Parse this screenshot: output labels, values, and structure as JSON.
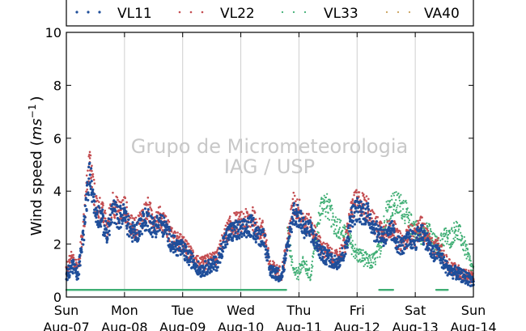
{
  "chart_data": {
    "type": "scatter",
    "title": "",
    "ylabel_prefix": "Wind speed (",
    "ylabel_unit_main": "ms",
    "ylabel_unit_exp": "−1",
    "ylabel_suffix": ")",
    "xlabel": "",
    "ylim": [
      0,
      10
    ],
    "xlim": [
      0,
      7
    ],
    "yticks": [
      0,
      2,
      4,
      6,
      8,
      10
    ],
    "xticks": [
      {
        "x": 0,
        "day": "Sun",
        "date": "Aug-07"
      },
      {
        "x": 1,
        "day": "Mon",
        "date": "Aug-08"
      },
      {
        "x": 2,
        "day": "Tue",
        "date": "Aug-09"
      },
      {
        "x": 3,
        "day": "Wed",
        "date": "Aug-10"
      },
      {
        "x": 4,
        "day": "Thu",
        "date": "Aug-11"
      },
      {
        "x": 5,
        "day": "Fri",
        "date": "Aug-12"
      },
      {
        "x": 6,
        "day": "Sat",
        "date": "Aug-13"
      },
      {
        "x": 7,
        "day": "Sun",
        "date": "Aug-14"
      }
    ],
    "grid": "vertical",
    "legend_position": "top",
    "watermark": [
      "Grupo de Micrometeorologia",
      "IAG / USP"
    ],
    "series": [
      {
        "name": "VL11",
        "color": "#1f4e9a",
        "size": 1.6,
        "x": [
          0,
          0.1,
          0.2,
          0.3,
          0.4,
          0.5,
          0.6,
          0.7,
          0.8,
          0.9,
          1,
          1.1,
          1.2,
          1.3,
          1.4,
          1.5,
          1.6,
          1.7,
          1.8,
          1.9,
          2,
          2.1,
          2.2,
          2.3,
          2.4,
          2.5,
          2.6,
          2.7,
          2.8,
          2.9,
          3,
          3.1,
          3.2,
          3.3,
          3.4,
          3.5,
          3.6,
          3.7,
          3.8,
          3.9,
          4,
          4.1,
          4.2,
          4.3,
          4.4,
          4.5,
          4.6,
          4.7,
          4.8,
          4.9,
          5,
          5.1,
          5.2,
          5.3,
          5.4,
          5.5,
          5.6,
          5.7,
          5.8,
          5.9,
          6,
          6.1,
          6.2,
          6.3,
          6.4,
          6.5,
          6.6,
          6.7,
          6.8,
          6.9,
          7
        ],
        "y": [
          0.8,
          1.2,
          0.8,
          2.5,
          4.8,
          3.2,
          3.0,
          2.3,
          3.3,
          3.0,
          3.1,
          2.5,
          2.4,
          2.8,
          3.0,
          2.6,
          2.8,
          2.6,
          2.1,
          1.9,
          1.8,
          1.5,
          1.3,
          1.0,
          1.1,
          1.2,
          1.3,
          2.0,
          2.4,
          2.5,
          2.5,
          2.6,
          2.7,
          2.3,
          2.3,
          1.0,
          0.9,
          0.8,
          1.8,
          3.2,
          3.0,
          2.6,
          2.5,
          2.0,
          1.6,
          1.5,
          1.3,
          1.4,
          1.8,
          3.0,
          3.3,
          3.2,
          3.1,
          2.5,
          2.4,
          2.2,
          2.5,
          2.0,
          1.9,
          2.2,
          2.1,
          2.5,
          2.1,
          1.6,
          1.7,
          1.2,
          1.0,
          0.9,
          0.8,
          0.7,
          0.6
        ]
      },
      {
        "name": "VL22",
        "color": "#c44e52",
        "size": 1.3,
        "x": [
          0,
          0.1,
          0.2,
          0.3,
          0.4,
          0.5,
          0.6,
          0.7,
          0.8,
          0.9,
          1,
          1.1,
          1.2,
          1.3,
          1.4,
          1.5,
          1.6,
          1.7,
          1.8,
          1.9,
          2,
          2.1,
          2.2,
          2.3,
          2.4,
          2.5,
          2.6,
          2.7,
          2.8,
          2.9,
          3,
          3.1,
          3.2,
          3.3,
          3.4,
          3.5,
          3.6,
          3.7,
          3.8,
          3.9,
          4,
          4.1,
          4.2,
          4.3,
          4.4,
          4.5,
          4.6,
          4.7,
          4.8,
          4.9,
          5,
          5.1,
          5.2,
          5.3,
          5.4,
          5.5,
          5.6,
          5.7,
          5.8,
          5.9,
          6,
          6.1,
          6.2,
          6.3,
          6.4,
          6.5,
          6.6,
          6.7,
          6.8,
          6.9,
          7
        ],
        "y": [
          1.0,
          1.5,
          1.0,
          2.8,
          5.2,
          3.5,
          3.3,
          2.6,
          3.6,
          3.2,
          3.4,
          2.7,
          2.6,
          3.0,
          3.3,
          2.9,
          3.0,
          2.8,
          2.3,
          2.1,
          2.0,
          1.7,
          1.5,
          1.2,
          1.3,
          1.4,
          1.5,
          2.2,
          2.6,
          2.8,
          2.8,
          2.9,
          3.0,
          2.6,
          2.5,
          1.2,
          1.0,
          0.9,
          2.0,
          3.5,
          3.3,
          2.8,
          2.7,
          2.2,
          1.8,
          1.7,
          1.4,
          1.6,
          2.0,
          3.3,
          3.6,
          3.5,
          3.3,
          2.7,
          2.6,
          2.4,
          2.7,
          2.2,
          2.0,
          2.4,
          2.3,
          2.7,
          2.3,
          1.8,
          1.9,
          1.4,
          1.2,
          1.0,
          0.9,
          0.8,
          0.7
        ]
      },
      {
        "name": "VL33",
        "color": "#3fae74",
        "size": 1.1,
        "x": [
          3.8,
          3.9,
          4.0,
          4.05,
          4.1,
          4.2,
          4.3,
          4.4,
          4.5,
          4.6,
          4.7,
          4.8,
          4.9,
          5.0,
          5.1,
          5.2,
          5.3,
          5.4,
          5.5,
          5.6,
          5.7,
          5.8,
          5.9,
          6.0,
          6.1,
          6.2,
          6.3,
          6.4,
          6.5,
          6.6,
          6.7,
          6.8,
          6.9,
          7.0
        ],
        "y": [
          2.5,
          1.0,
          0.9,
          1.4,
          1.2,
          0.8,
          2.4,
          3.6,
          3.4,
          2.8,
          2.6,
          2.3,
          2.0,
          1.6,
          1.5,
          1.3,
          1.4,
          1.9,
          3.2,
          3.5,
          3.5,
          3.4,
          2.8,
          2.6,
          2.3,
          2.6,
          2.1,
          1.9,
          2.3,
          2.2,
          2.6,
          2.2,
          1.6,
          0.9
        ]
      },
      {
        "name": "VA40",
        "color": "#c9a05a",
        "size": 0.9,
        "x": [],
        "y": []
      }
    ],
    "flat_runs": [
      {
        "series": "VL33",
        "y": 0.27,
        "x_start": 0.0,
        "x_end": 3.78
      },
      {
        "series": "VL33",
        "y": 0.27,
        "x_start": 5.38,
        "x_end": 5.62
      },
      {
        "series": "VL33",
        "y": 0.27,
        "x_start": 6.36,
        "x_end": 6.56
      }
    ]
  }
}
